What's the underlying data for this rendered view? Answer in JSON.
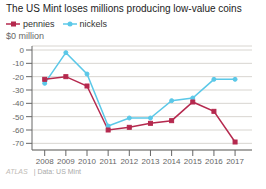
{
  "chart_data": {
    "type": "line",
    "title": "The US Mint loses millions producing low-value coins",
    "ylabel": "$0 million",
    "x": [
      2008,
      2009,
      2010,
      2011,
      2012,
      2013,
      2014,
      2015,
      2016,
      2017
    ],
    "series": [
      {
        "name": "pennies",
        "color": "#b5294e",
        "marker": "square",
        "values": [
          -22,
          -20,
          -27,
          -60,
          -58,
          -55,
          -53,
          -39,
          -46,
          -69
        ]
      },
      {
        "name": "nickels",
        "color": "#5bc8e8",
        "marker": "circle",
        "values": [
          -25,
          -2,
          -18,
          -57,
          -51,
          -51,
          -38,
          -36,
          -22,
          -22
        ]
      }
    ],
    "xlim": [
      2007.4,
      2017.8
    ],
    "xticks": [
      2008,
      2009,
      2010,
      2011,
      2012,
      2013,
      2014,
      2015,
      2016,
      2017
    ],
    "ylim": [
      -75,
      3
    ],
    "yticks": [
      0,
      -10,
      -20,
      -30,
      -40,
      -50,
      -60,
      -70
    ],
    "grid": "y",
    "annotations": [
      "ATLAS",
      "| Data: US Mint"
    ]
  }
}
